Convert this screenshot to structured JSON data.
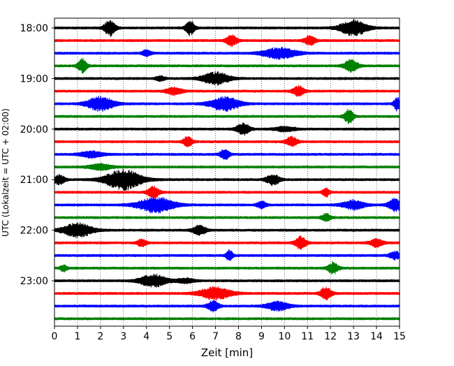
{
  "chart_data": {
    "type": "line",
    "title": "",
    "xlabel": "Zeit  [min]",
    "ylabel": "UTC (Lokalzeit = UTC + 02:00)",
    "xlim": [
      0,
      15
    ],
    "x_ticks": [
      0,
      1,
      2,
      3,
      4,
      5,
      6,
      7,
      8,
      9,
      10,
      11,
      12,
      13,
      14,
      15
    ],
    "x_tick_labels": [
      "0",
      "1",
      "2",
      "3",
      "4",
      "5",
      "6",
      "7",
      "8",
      "9",
      "10",
      "11",
      "12",
      "13",
      "14",
      "15"
    ],
    "y_tick_labels": [
      "18:00",
      "19:00",
      "20:00",
      "21:00",
      "22:00",
      "23:00"
    ],
    "grid": "vertical dotted",
    "trace_color_cycle": [
      "#000000",
      "#ff0000",
      "#0000ff",
      "#008000"
    ],
    "traces": [
      {
        "start": "18:00",
        "events": [
          [
            2.4,
            0.5,
            1.0
          ],
          [
            5.9,
            0.4,
            0.9
          ],
          [
            13.0,
            1.2,
            1.0
          ]
        ]
      },
      {
        "start": "18:15",
        "events": [
          [
            7.7,
            0.5,
            0.7
          ],
          [
            11.1,
            0.5,
            0.6
          ]
        ]
      },
      {
        "start": "18:30",
        "events": [
          [
            4.0,
            0.4,
            0.4
          ],
          [
            9.8,
            1.5,
            0.7
          ]
        ]
      },
      {
        "start": "18:45",
        "events": [
          [
            1.2,
            0.4,
            0.9
          ],
          [
            12.9,
            0.6,
            0.8
          ]
        ]
      },
      {
        "start": "19:00",
        "events": [
          [
            4.6,
            0.4,
            0.3
          ],
          [
            7.0,
            1.2,
            0.8
          ]
        ]
      },
      {
        "start": "19:15",
        "events": [
          [
            5.2,
            0.7,
            0.5
          ],
          [
            10.6,
            0.5,
            0.7
          ]
        ]
      },
      {
        "start": "19:30",
        "events": [
          [
            2.0,
            1.2,
            0.9
          ],
          [
            7.4,
            1.3,
            0.9
          ],
          [
            14.9,
            0.3,
            0.9
          ]
        ]
      },
      {
        "start": "19:45",
        "events": [
          [
            12.8,
            0.4,
            0.9
          ]
        ]
      },
      {
        "start": "20:00",
        "events": [
          [
            8.2,
            0.6,
            0.7
          ],
          [
            10.0,
            0.9,
            0.3
          ]
        ]
      },
      {
        "start": "20:15",
        "events": [
          [
            5.8,
            0.4,
            0.7
          ],
          [
            10.3,
            0.5,
            0.6
          ]
        ]
      },
      {
        "start": "20:30",
        "events": [
          [
            1.6,
            1.0,
            0.4
          ],
          [
            7.4,
            0.4,
            0.7
          ]
        ]
      },
      {
        "start": "20:45",
        "events": [
          [
            2.0,
            1.0,
            0.4
          ]
        ]
      },
      {
        "start": "21:00",
        "events": [
          [
            0.2,
            0.5,
            0.6
          ],
          [
            3.0,
            1.6,
            1.3
          ],
          [
            9.5,
            0.6,
            0.7
          ]
        ]
      },
      {
        "start": "21:15",
        "events": [
          [
            4.3,
            0.5,
            0.8
          ],
          [
            11.8,
            0.3,
            0.6
          ]
        ]
      },
      {
        "start": "21:30",
        "events": [
          [
            4.4,
            1.6,
            1.0
          ],
          [
            9.0,
            0.4,
            0.5
          ],
          [
            13.0,
            1.0,
            0.6
          ],
          [
            14.8,
            0.6,
            0.8
          ]
        ]
      },
      {
        "start": "21:45",
        "events": [
          [
            11.8,
            0.4,
            0.5
          ]
        ]
      },
      {
        "start": "22:00",
        "events": [
          [
            1.0,
            1.3,
            0.9
          ],
          [
            6.3,
            0.6,
            0.6
          ]
        ]
      },
      {
        "start": "22:15",
        "events": [
          [
            3.8,
            0.4,
            0.5
          ],
          [
            10.7,
            0.5,
            0.8
          ],
          [
            14.0,
            0.6,
            0.5
          ]
        ]
      },
      {
        "start": "22:30",
        "events": [
          [
            7.6,
            0.3,
            0.7
          ],
          [
            14.8,
            0.5,
            0.5
          ]
        ]
      },
      {
        "start": "22:45",
        "events": [
          [
            0.4,
            0.3,
            0.4
          ],
          [
            12.1,
            0.5,
            0.7
          ]
        ]
      },
      {
        "start": "23:00",
        "events": [
          [
            4.3,
            1.2,
            0.8
          ],
          [
            5.7,
            0.8,
            0.3
          ]
        ]
      },
      {
        "start": "23:15",
        "events": [
          [
            7.0,
            1.4,
            0.8
          ],
          [
            11.8,
            0.5,
            0.8
          ]
        ]
      },
      {
        "start": "23:30",
        "events": [
          [
            6.9,
            0.5,
            0.7
          ],
          [
            9.7,
            1.0,
            0.6
          ]
        ]
      },
      {
        "start": "23:45",
        "events": []
      }
    ]
  }
}
